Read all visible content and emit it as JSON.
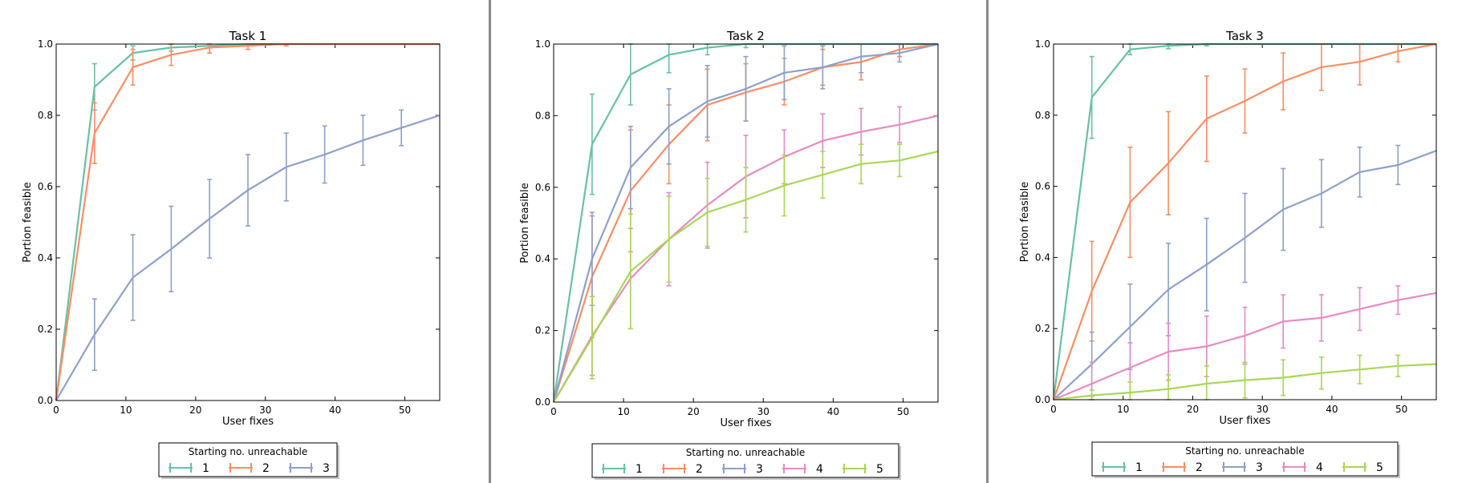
{
  "legend_title": "Starting no. unreachable",
  "series_colors": {
    "1": "#66c2a5",
    "2": "#fc8d62",
    "3": "#8da0cb",
    "4": "#e78ac3",
    "5": "#a6d854"
  },
  "chart_data": [
    {
      "type": "line",
      "title": "Task 1",
      "xlabel": "User fixes",
      "ylabel": "Portion feasible",
      "xlim": [
        0,
        55
      ],
      "ylim": [
        0,
        1.0
      ],
      "xticks": [
        "0",
        "10",
        "20",
        "30",
        "40",
        "50"
      ],
      "yticks": [
        "0.0",
        "0.2",
        "0.4",
        "0.6",
        "0.8",
        "1.0"
      ],
      "grid": false,
      "legend_placement": "below",
      "x": [
        0,
        5.5,
        11,
        16.5,
        22,
        27.5,
        33,
        38.5,
        44,
        49.5,
        55
      ],
      "series": [
        {
          "name": "1",
          "values": [
            0,
            0.88,
            0.975,
            0.99,
            0.995,
            1.0,
            1.0,
            1.0,
            1.0,
            1.0,
            1.0
          ],
          "err": [
            0,
            0.065,
            0.02,
            0.01,
            0.006,
            0.003,
            0,
            0,
            0,
            0,
            0
          ]
        },
        {
          "name": "2",
          "values": [
            0,
            0.75,
            0.935,
            0.97,
            0.99,
            0.995,
            1.0,
            1.0,
            1.0,
            1.0,
            1.0
          ],
          "err": [
            0,
            0.085,
            0.05,
            0.03,
            0.015,
            0.01,
            0.005,
            0,
            0,
            0,
            0
          ]
        },
        {
          "name": "3",
          "values": [
            0,
            0.185,
            0.345,
            0.425,
            0.51,
            0.59,
            0.655,
            0.69,
            0.73,
            0.765,
            0.8
          ],
          "err": [
            0,
            0.1,
            0.12,
            0.12,
            0.11,
            0.1,
            0.095,
            0.08,
            0.07,
            0.05,
            0
          ]
        }
      ]
    },
    {
      "type": "line",
      "title": "Task 2",
      "xlabel": "User fixes",
      "ylabel": "Portion feasible",
      "xlim": [
        0,
        55
      ],
      "ylim": [
        0,
        1.0
      ],
      "xticks": [
        "0",
        "10",
        "20",
        "30",
        "40",
        "50"
      ],
      "yticks": [
        "0.0",
        "0.2",
        "0.4",
        "0.6",
        "0.8",
        "1.0"
      ],
      "grid": false,
      "legend_placement": "below",
      "x": [
        0,
        5.5,
        11,
        16.5,
        22,
        27.5,
        33,
        38.5,
        44,
        49.5,
        55
      ],
      "series": [
        {
          "name": "1",
          "values": [
            0,
            0.72,
            0.915,
            0.97,
            0.99,
            1.0,
            1.0,
            1.0,
            1.0,
            1.0,
            1.0
          ],
          "err": [
            0,
            0.14,
            0.085,
            0.05,
            0.02,
            0.01,
            0,
            0,
            0,
            0,
            0
          ]
        },
        {
          "name": "2",
          "values": [
            0,
            0.35,
            0.59,
            0.72,
            0.83,
            0.865,
            0.895,
            0.935,
            0.95,
            0.985,
            1.0
          ],
          "err": [
            0,
            0.17,
            0.17,
            0.11,
            0.1,
            0.08,
            0.065,
            0.05,
            0.05,
            0.02,
            0
          ]
        },
        {
          "name": "3",
          "values": [
            0,
            0.4,
            0.655,
            0.77,
            0.84,
            0.875,
            0.92,
            0.935,
            0.965,
            0.975,
            1.0
          ],
          "err": [
            0,
            0.13,
            0.115,
            0.105,
            0.1,
            0.09,
            0.075,
            0.06,
            0.045,
            0.025,
            0
          ]
        },
        {
          "name": "4",
          "values": [
            0,
            0.185,
            0.345,
            0.455,
            0.55,
            0.63,
            0.685,
            0.73,
            0.755,
            0.775,
            0.8
          ],
          "err": [
            0,
            0.11,
            0.14,
            0.13,
            0.12,
            0.115,
            0.075,
            0.075,
            0.065,
            0.05,
            0
          ]
        },
        {
          "name": "5",
          "values": [
            0,
            0.18,
            0.365,
            0.455,
            0.53,
            0.565,
            0.605,
            0.635,
            0.665,
            0.675,
            0.7
          ],
          "err": [
            0,
            0.115,
            0.16,
            0.12,
            0.095,
            0.09,
            0.085,
            0.065,
            0.055,
            0.045,
            0
          ]
        }
      ]
    },
    {
      "type": "line",
      "title": "Task 3",
      "xlabel": "User fixes",
      "ylabel": "Portion feasible",
      "xlim": [
        0,
        55
      ],
      "ylim": [
        0,
        1.0
      ],
      "xticks": [
        "0",
        "10",
        "20",
        "30",
        "40",
        "50"
      ],
      "yticks": [
        "0.0",
        "0.2",
        "0.4",
        "0.6",
        "0.8",
        "1.0"
      ],
      "grid": false,
      "legend_placement": "below",
      "x": [
        0,
        5.5,
        11,
        16.5,
        22,
        27.5,
        33,
        38.5,
        44,
        49.5,
        55
      ],
      "series": [
        {
          "name": "1",
          "values": [
            0,
            0.85,
            0.985,
            0.995,
            1.0,
            1.0,
            1.0,
            1.0,
            1.0,
            1.0,
            1.0
          ],
          "err": [
            0,
            0.115,
            0.015,
            0.008,
            0.005,
            0,
            0,
            0,
            0,
            0,
            0
          ]
        },
        {
          "name": "2",
          "values": [
            0,
            0.305,
            0.555,
            0.665,
            0.79,
            0.84,
            0.895,
            0.935,
            0.95,
            0.98,
            1.0
          ],
          "err": [
            0,
            0.14,
            0.155,
            0.145,
            0.12,
            0.09,
            0.08,
            0.065,
            0.065,
            0.03,
            0
          ]
        },
        {
          "name": "3",
          "values": [
            0,
            0.1,
            0.205,
            0.31,
            0.38,
            0.455,
            0.535,
            0.58,
            0.64,
            0.66,
            0.7
          ],
          "err": [
            0,
            0.09,
            0.12,
            0.13,
            0.13,
            0.125,
            0.115,
            0.095,
            0.07,
            0.055,
            0
          ]
        },
        {
          "name": "4",
          "values": [
            0,
            0.045,
            0.09,
            0.135,
            0.15,
            0.18,
            0.22,
            0.23,
            0.255,
            0.28,
            0.3
          ],
          "err": [
            0,
            0.06,
            0.07,
            0.08,
            0.085,
            0.08,
            0.075,
            0.065,
            0.06,
            0.04,
            0
          ]
        },
        {
          "name": "5",
          "values": [
            0,
            0.012,
            0.02,
            0.03,
            0.045,
            0.055,
            0.062,
            0.075,
            0.085,
            0.095,
            0.1
          ],
          "err": [
            0,
            0.015,
            0.03,
            0.04,
            0.05,
            0.05,
            0.05,
            0.045,
            0.04,
            0.03,
            0
          ]
        }
      ]
    }
  ]
}
